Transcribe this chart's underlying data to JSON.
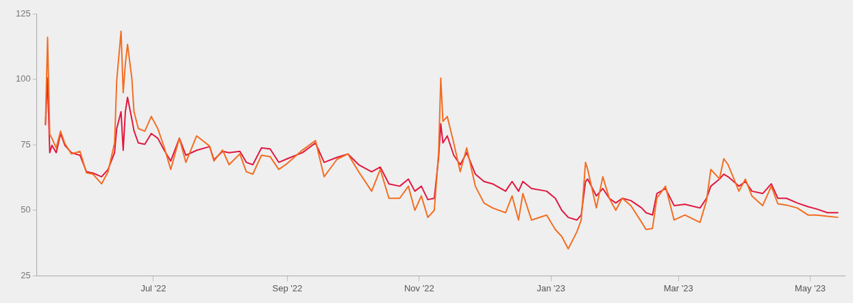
{
  "chart_data": {
    "type": "line",
    "x": [
      "2022-05-12",
      "2022-05-13",
      "2022-05-14",
      "2022-05-15",
      "2022-05-17",
      "2022-05-19",
      "2022-05-21",
      "2022-05-24",
      "2022-05-28",
      "2022-05-31",
      "2022-06-03",
      "2022-06-07",
      "2022-06-10",
      "2022-06-13",
      "2022-06-14",
      "2022-06-16",
      "2022-06-17",
      "2022-06-18",
      "2022-06-19",
      "2022-06-21",
      "2022-06-22",
      "2022-06-24",
      "2022-06-27",
      "2022-06-30",
      "2022-07-03",
      "2022-07-06",
      "2022-07-09",
      "2022-07-13",
      "2022-07-16",
      "2022-07-21",
      "2022-07-27",
      "2022-07-29",
      "2022-08-02",
      "2022-08-05",
      "2022-08-10",
      "2022-08-13",
      "2022-08-16",
      "2022-08-20",
      "2022-08-24",
      "2022-08-28",
      "2022-09-01",
      "2022-09-08",
      "2022-09-14",
      "2022-09-18",
      "2022-09-24",
      "2022-09-29",
      "2022-10-04",
      "2022-10-10",
      "2022-10-14",
      "2022-10-18",
      "2022-10-23",
      "2022-10-27",
      "2022-10-30",
      "2022-11-02",
      "2022-11-05",
      "2022-11-08",
      "2022-11-10",
      "2022-11-11",
      "2022-11-12",
      "2022-11-14",
      "2022-11-17",
      "2022-11-20",
      "2022-11-23",
      "2022-11-27",
      "2022-12-01",
      "2022-12-05",
      "2022-12-11",
      "2022-12-14",
      "2022-12-17",
      "2022-12-19",
      "2022-12-23",
      "2022-12-30",
      "2023-01-03",
      "2023-01-06",
      "2023-01-09",
      "2023-01-13",
      "2023-01-15",
      "2023-01-17",
      "2023-01-18",
      "2023-01-22",
      "2023-01-25",
      "2023-01-28",
      "2023-01-31",
      "2023-02-03",
      "2023-02-07",
      "2023-02-12",
      "2023-02-14",
      "2023-02-17",
      "2023-02-19",
      "2023-02-23",
      "2023-02-27",
      "2023-03-04",
      "2023-03-11",
      "2023-03-14",
      "2023-03-16",
      "2023-03-20",
      "2023-03-22",
      "2023-03-24",
      "2023-03-29",
      "2023-04-01",
      "2023-04-04",
      "2023-04-09",
      "2023-04-13",
      "2023-04-16",
      "2023-04-20",
      "2023-04-25",
      "2023-04-30",
      "2023-05-04",
      "2023-05-09",
      "2023-05-14"
    ],
    "series": [
      {
        "color": "#f36d21",
        "values": [
          83,
          116,
          79,
          77.5,
          73.8,
          80.2,
          75.5,
          71.5,
          72.5,
          64.3,
          63.8,
          60.1,
          64.7,
          75.7,
          99.5,
          118.3,
          94.9,
          105.9,
          113.3,
          100.4,
          87.6,
          81.2,
          80.2,
          85.8,
          81.2,
          74,
          65.6,
          77.5,
          68.3,
          78.4,
          74.5,
          68.8,
          73,
          67.4,
          71.5,
          64.7,
          63.8,
          71,
          70.5,
          65.6,
          67.9,
          73,
          76.6,
          62.8,
          69.5,
          71.5,
          64.7,
          57.3,
          65.6,
          54.6,
          54.6,
          59.2,
          50,
          55.5,
          47.3,
          50,
          72,
          100.4,
          83.9,
          85.8,
          75.7,
          64.7,
          73.8,
          59.2,
          52.8,
          50.9,
          49.1,
          55.5,
          46.3,
          56.4,
          46.3,
          48.2,
          42.7,
          40,
          35.3,
          41.8,
          46.3,
          68.3,
          65.6,
          50.9,
          62.8,
          54.6,
          50,
          54.6,
          51.8,
          45.4,
          42.7,
          43.1,
          54.6,
          59.2,
          46.3,
          48.2,
          45.4,
          53.7,
          65.6,
          62,
          69.7,
          67.4,
          57.3,
          61.9,
          55.5,
          51.8,
          59.2,
          52.5,
          52,
          50.9,
          48.2,
          48.2,
          47.7,
          47.3
        ]
      },
      {
        "color": "#e0173f",
        "values": [
          82.5,
          100.4,
          72,
          74.8,
          72,
          79.3,
          74.8,
          72,
          71,
          64.7,
          64.2,
          62.8,
          65.6,
          72,
          81.2,
          87.6,
          72.9,
          87.6,
          93.1,
          84.8,
          80.3,
          75.7,
          75.2,
          79.3,
          77.5,
          72.9,
          68.8,
          77.5,
          71,
          72.9,
          74.3,
          69.3,
          72.5,
          72,
          72.5,
          68.3,
          67.4,
          73.8,
          73.4,
          68.3,
          69.7,
          72,
          75.7,
          68.3,
          70.2,
          71.5,
          67.4,
          64.7,
          66.5,
          60.1,
          59.2,
          61.9,
          57.3,
          59.2,
          54.1,
          54.6,
          70.2,
          83,
          75.7,
          78.4,
          71,
          67.4,
          72,
          63.8,
          61,
          60.1,
          57.3,
          61,
          57.3,
          61,
          58.3,
          57.3,
          54.6,
          50,
          47.3,
          46.3,
          48.2,
          61,
          61.9,
          55.5,
          58.3,
          54.6,
          52.8,
          54.6,
          53.7,
          50.9,
          49.1,
          48.2,
          56.4,
          58.3,
          51.8,
          52.3,
          50.9,
          54.6,
          59.2,
          61.9,
          63.8,
          62.8,
          59.2,
          61,
          57.3,
          56.4,
          60.1,
          54.6,
          54.6,
          52.8,
          51.4,
          50.5,
          49.1,
          49.1
        ]
      }
    ],
    "xlim": [
      "2022-05-08",
      "2023-05-17"
    ],
    "xticks": [
      {
        "value": "2022-07-01",
        "label": "Jul '22"
      },
      {
        "value": "2022-09-01",
        "label": "Sep '22"
      },
      {
        "value": "2022-11-01",
        "label": "Nov '22"
      },
      {
        "value": "2023-01-01",
        "label": "Jan '23"
      },
      {
        "value": "2023-03-01",
        "label": "Mar '23"
      },
      {
        "value": "2023-05-01",
        "label": "May '23"
      }
    ],
    "ylim": [
      25,
      125
    ],
    "yticks": [
      25,
      50,
      75,
      100,
      125
    ]
  }
}
